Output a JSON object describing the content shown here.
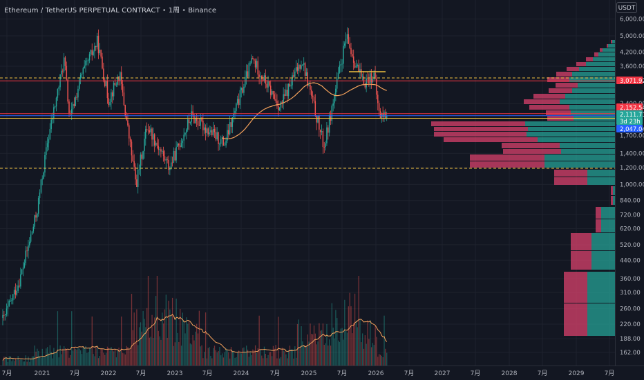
{
  "header": {
    "symbol": "Ethereum / TetherUS PERPETUAL CONTRACT",
    "timeframe": "1周",
    "exchange": "Binance",
    "separator": "•"
  },
  "price_axis": {
    "currency": "USDT",
    "ticks": [
      "6,000.00",
      "5,000.00",
      "4,200.00",
      "3,600.00",
      "2,400.00",
      "1,700.00",
      "1,400.00",
      "1,200.00",
      "1,000.00",
      "840.00",
      "720.00",
      "620.00",
      "520.00",
      "440.00",
      "360.00",
      "310.00",
      "260.00",
      "220.00",
      "188.00",
      "162.00"
    ],
    "badges": [
      {
        "label": "3,071.92",
        "color": "#f23645"
      },
      {
        "label": "2,152.54",
        "color": "#f23645"
      },
      {
        "label": "2,111.71",
        "color": "#26a69a"
      },
      {
        "label": "3d 23h",
        "color": "#26a69a"
      },
      {
        "label": "2,047.04",
        "color": "#2962ff"
      }
    ]
  },
  "time_axis": {
    "labels": [
      "7月",
      "2021",
      "7月",
      "2022",
      "7月",
      "2023",
      "7月",
      "2024",
      "7月",
      "2025",
      "7月",
      "2026",
      "7月",
      "2027",
      "7月",
      "2028",
      "7月",
      "2029",
      "7月"
    ]
  },
  "colors": {
    "background": "#131722",
    "up": "#26a69a",
    "down": "#ef5350",
    "ma": "#f7a35c",
    "volume_ma": "#f7a35c",
    "volume_profile_up": "#26a69a",
    "volume_profile_down": "#e0426f",
    "dashed_line": "#f0c040",
    "red_line": "#f23645",
    "blue_line": "#2962ff"
  },
  "chart_data": {
    "type": "candlestick",
    "title": "Ethereum / TetherUS PERPETUAL CONTRACT",
    "timeframe": "weekly",
    "x_range": [
      "2020-06",
      "2029-09"
    ],
    "y_scale": "log",
    "ylim": [
      150,
      6500
    ],
    "price_path": [
      {
        "date": "2020-06",
        "price": 230
      },
      {
        "date": "2020-09",
        "price": 360
      },
      {
        "date": "2020-12",
        "price": 730
      },
      {
        "date": "2021-02",
        "price": 1600
      },
      {
        "date": "2021-05",
        "price": 3900
      },
      {
        "date": "2021-06",
        "price": 2000
      },
      {
        "date": "2021-08",
        "price": 3200
      },
      {
        "date": "2021-11",
        "price": 4700
      },
      {
        "date": "2022-01",
        "price": 2500
      },
      {
        "date": "2022-03",
        "price": 3300
      },
      {
        "date": "2022-06",
        "price": 1000
      },
      {
        "date": "2022-08",
        "price": 1900
      },
      {
        "date": "2022-12",
        "price": 1200
      },
      {
        "date": "2023-04",
        "price": 2100
      },
      {
        "date": "2023-10",
        "price": 1550
      },
      {
        "date": "2024-03",
        "price": 3900
      },
      {
        "date": "2024-08",
        "price": 2300
      },
      {
        "date": "2024-12",
        "price": 3900
      },
      {
        "date": "2025-04",
        "price": 1500
      },
      {
        "date": "2025-08",
        "price": 4900
      },
      {
        "date": "2025-11",
        "price": 3000
      },
      {
        "date": "2026-01",
        "price": 3300
      },
      {
        "date": "2026-02",
        "price": 2111.71
      }
    ],
    "levels": [
      {
        "price": 3071.92,
        "style": "red"
      },
      {
        "price": 2152.54,
        "style": "red"
      },
      {
        "price": 2047.04,
        "style": "yellow"
      }
    ]
  }
}
